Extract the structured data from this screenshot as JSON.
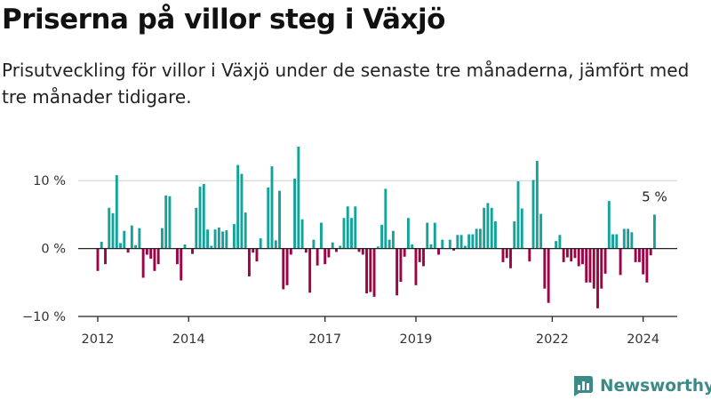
{
  "title": "Priserna på villor steg i Växjö",
  "subtitle": "Prisutveckling för villor i Växjö under de senaste tre månaderna, jämfört med tre månader tidigare.",
  "brand": {
    "name": "Newsworthy"
  },
  "colors": {
    "positive": "#14a39a",
    "negative": "#9b0545",
    "axis": "#222222",
    "grid": "#cfcfcf",
    "brand": "#3a8a88"
  },
  "chart_data": {
    "type": "bar",
    "title": "Priserna på villor steg i Växjö",
    "xlabel": "",
    "ylabel": "",
    "ylim": [
      -10,
      15
    ],
    "xlim": [
      2011.57,
      2024.75
    ],
    "grid": true,
    "legend": "none",
    "ytick_values": [
      10,
      0,
      -10
    ],
    "yticks": [
      "10 %",
      "0 %",
      "−10 %"
    ],
    "xtick_values": [
      2012,
      2014,
      2017,
      2019,
      2022,
      2024
    ],
    "xticks": [
      "2012",
      "2014",
      "2017",
      "2019",
      "2022",
      "2024"
    ],
    "annotation": {
      "text": "5 %",
      "x": 2024.25,
      "y": 5
    },
    "x": [
      2012.0,
      2012.083,
      2012.167,
      2012.25,
      2012.333,
      2012.417,
      2012.5,
      2012.583,
      2012.667,
      2012.75,
      2012.833,
      2012.917,
      2013.0,
      2013.083,
      2013.167,
      2013.25,
      2013.333,
      2013.417,
      2013.5,
      2013.583,
      2013.667,
      2013.75,
      2013.833,
      2013.917,
      2014.0,
      2014.083,
      2014.167,
      2014.25,
      2014.333,
      2014.417,
      2014.5,
      2014.583,
      2014.667,
      2014.75,
      2014.833,
      2014.917,
      2015.0,
      2015.083,
      2015.167,
      2015.25,
      2015.333,
      2015.417,
      2015.5,
      2015.583,
      2015.667,
      2015.75,
      2015.833,
      2015.917,
      2016.0,
      2016.083,
      2016.167,
      2016.25,
      2016.333,
      2016.417,
      2016.5,
      2016.583,
      2016.667,
      2016.75,
      2016.833,
      2016.917,
      2017.0,
      2017.083,
      2017.167,
      2017.25,
      2017.333,
      2017.417,
      2017.5,
      2017.583,
      2017.667,
      2017.75,
      2017.833,
      2017.917,
      2018.0,
      2018.083,
      2018.167,
      2018.25,
      2018.333,
      2018.417,
      2018.5,
      2018.583,
      2018.667,
      2018.75,
      2018.833,
      2018.917,
      2019.0,
      2019.083,
      2019.167,
      2019.25,
      2019.333,
      2019.417,
      2019.5,
      2019.583,
      2019.667,
      2019.75,
      2019.833,
      2019.917,
      2020.0,
      2020.083,
      2020.167,
      2020.25,
      2020.333,
      2020.417,
      2020.5,
      2020.583,
      2020.667,
      2020.75,
      2020.833,
      2020.917,
      2021.0,
      2021.083,
      2021.167,
      2021.25,
      2021.333,
      2021.417,
      2021.5,
      2021.583,
      2021.667,
      2021.75,
      2021.833,
      2021.917,
      2022.0,
      2022.083,
      2022.167,
      2022.25,
      2022.333,
      2022.417,
      2022.5,
      2022.583,
      2022.667,
      2022.75,
      2022.833,
      2022.917,
      2023.0,
      2023.083,
      2023.167,
      2023.25,
      2023.333,
      2023.417,
      2023.5,
      2023.583,
      2023.667,
      2023.75,
      2023.833,
      2023.917,
      2024.0,
      2024.083,
      2024.167,
      2024.25
    ],
    "values": [
      -3.3,
      1.0,
      -2.3,
      6.0,
      5.2,
      10.8,
      0.8,
      2.6,
      -0.6,
      3.4,
      0.5,
      3.0,
      -4.3,
      -0.9,
      -1.5,
      -3.3,
      -2.3,
      3.0,
      7.8,
      7.7,
      0.0,
      -2.3,
      -4.7,
      0.6,
      0.1,
      -0.8,
      6.0,
      9.1,
      9.5,
      2.8,
      0.4,
      2.8,
      3.1,
      2.5,
      2.7,
      0.0,
      3.6,
      12.3,
      11.0,
      5.3,
      -4.1,
      -0.6,
      -1.9,
      1.5,
      0.0,
      9.0,
      12.1,
      1.2,
      8.5,
      -6.0,
      -5.4,
      -0.9,
      10.3,
      15.0,
      4.3,
      -0.6,
      -6.5,
      1.3,
      -2.5,
      3.8,
      -2.3,
      -1.3,
      0.9,
      -0.5,
      0.4,
      4.5,
      6.2,
      4.5,
      6.2,
      -0.5,
      -0.9,
      -6.6,
      -6.4,
      -7.1,
      0.3,
      3.5,
      8.8,
      1.3,
      2.6,
      -6.9,
      -4.9,
      -1.2,
      4.5,
      0.6,
      -5.4,
      -2.0,
      -2.6,
      3.8,
      0.6,
      3.8,
      -0.9,
      1.3,
      0.0,
      1.3,
      -0.3,
      2.0,
      2.0,
      0.4,
      2.1,
      2.1,
      2.9,
      2.9,
      6.0,
      6.7,
      6.0,
      4.0,
      0.0,
      -2.0,
      -1.4,
      -2.9,
      4.0,
      9.9,
      5.9,
      0.0,
      -1.9,
      10.1,
      12.9,
      5.1,
      -5.9,
      -8.0,
      0.0,
      1.1,
      2.0,
      -2.0,
      -1.3,
      -1.9,
      -1.4,
      -2.6,
      -2.3,
      -5.0,
      -5.0,
      -5.9,
      -8.8,
      -5.9,
      -3.7,
      7.0,
      2.1,
      2.1,
      -3.9,
      2.9,
      2.9,
      2.4,
      -2.0,
      -2.0,
      -3.8,
      -5.0,
      -1.0,
      5.0
    ]
  }
}
